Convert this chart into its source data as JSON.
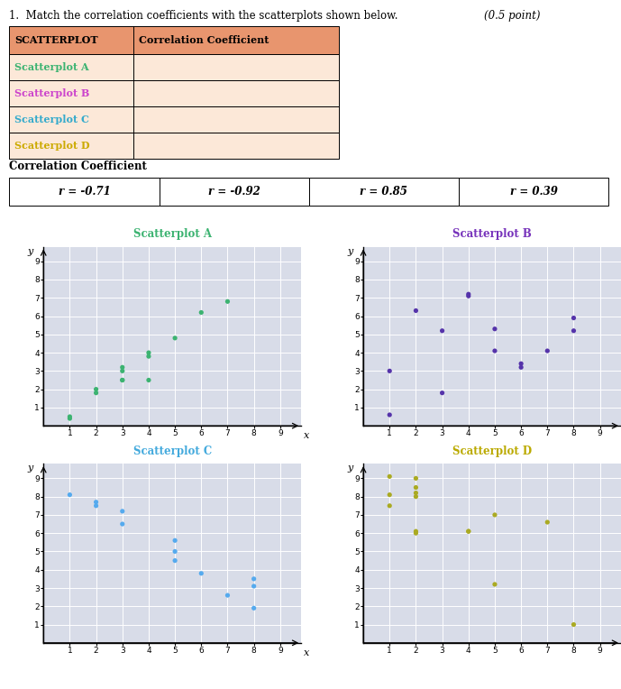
{
  "title_text": "1.  Match the correlation coefficients with the scatterplots shown below.",
  "title_italic": "(0.5 point)",
  "table1_rows": [
    "Scatterplot A",
    "Scatterplot B",
    "Scatterplot C",
    "Scatterplot D"
  ],
  "table1_colors": [
    "#3cb371",
    "#cc44cc",
    "#33aacc",
    "#ccaa00"
  ],
  "table_header_bg": "#e8956e",
  "table_row_bg": "#fce8d8",
  "cc_header": "Correlation Coefficient",
  "cc_values": [
    "r = -0.71",
    "r = -0.92",
    "r = 0.85",
    "r = 0.39"
  ],
  "scatterplot_titles": [
    "Scatterplot A",
    "Scatterplot B",
    "Scatterplot C",
    "Scatterplot D"
  ],
  "scatter_colors": [
    "#3cb371",
    "#5533aa",
    "#55aaee",
    "#aaaa22"
  ],
  "title_colors": [
    "#3cb371",
    "#7733bb",
    "#44aadd",
    "#bbaa00"
  ],
  "panel_bg": "#d8dce8",
  "A_x": [
    1,
    1,
    2,
    2,
    3,
    3,
    3,
    3,
    4,
    4,
    4,
    5,
    6,
    7
  ],
  "A_y": [
    0.4,
    0.5,
    1.8,
    2.0,
    2.5,
    3.0,
    3.2,
    2.5,
    3.8,
    4.0,
    2.5,
    4.8,
    6.2,
    6.8
  ],
  "B_x": [
    1,
    1,
    2,
    3,
    3,
    4,
    4,
    5,
    5,
    6,
    6,
    7,
    8,
    8
  ],
  "B_y": [
    0.6,
    3.0,
    6.3,
    5.2,
    1.8,
    7.2,
    7.1,
    5.3,
    4.1,
    3.2,
    3.4,
    4.1,
    5.9,
    5.2
  ],
  "C_x": [
    1,
    2,
    2,
    3,
    3,
    5,
    5,
    5,
    6,
    7,
    8,
    8,
    8
  ],
  "C_y": [
    8.1,
    7.7,
    7.5,
    7.2,
    6.5,
    5.6,
    5.0,
    4.5,
    3.8,
    2.6,
    3.5,
    3.1,
    1.9
  ],
  "D_x": [
    1,
    1,
    1,
    2,
    2,
    2,
    2,
    2,
    2,
    4,
    4,
    5,
    5,
    7,
    8
  ],
  "D_y": [
    7.5,
    9.1,
    8.1,
    8.2,
    8.0,
    9.0,
    8.5,
    6.1,
    6.0,
    6.1,
    6.1,
    3.2,
    7.0,
    6.6,
    1.0
  ],
  "figsize": [
    6.89,
    7.64
  ],
  "dpi": 100
}
